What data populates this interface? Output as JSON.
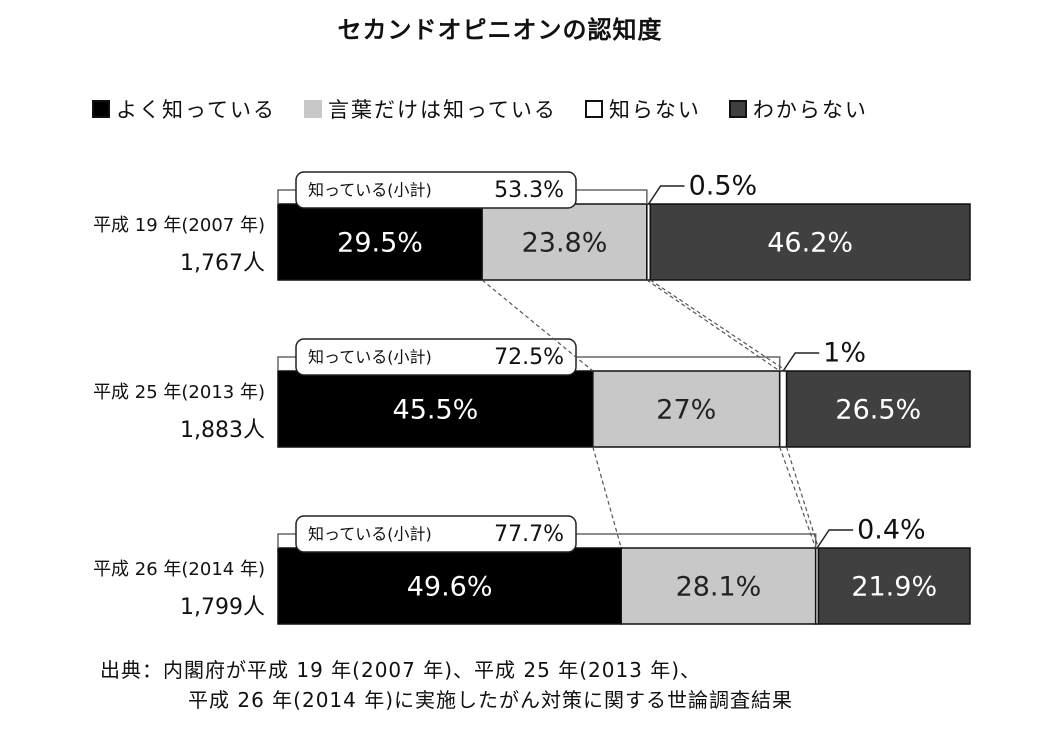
{
  "chart_data": {
    "type": "bar",
    "orientation": "horizontal-stacked-100",
    "title": "セカンドオピニオンの認知度",
    "legend": [
      {
        "label": "よく知っている",
        "color": "#000000"
      },
      {
        "label": "言葉だけは知っている",
        "color": "#c8c8c8"
      },
      {
        "label": "知らない",
        "color": "#ffffff"
      },
      {
        "label": "わからない",
        "color": "#404040"
      }
    ],
    "categories": [
      {
        "label": "平成 19 年(2007 年)",
        "n_label": "1,767人"
      },
      {
        "label": "平成 25 年(2013 年)",
        "n_label": "1,883人"
      },
      {
        "label": "平成 26 年(2014 年)",
        "n_label": "1,799人"
      }
    ],
    "series": [
      {
        "name": "よく知っている",
        "values": [
          29.5,
          45.5,
          49.6
        ],
        "labels": [
          "29.5%",
          "45.5%",
          "49.6%"
        ]
      },
      {
        "name": "言葉だけは知っている",
        "values": [
          23.8,
          27,
          28.1
        ],
        "labels": [
          "23.8%",
          "27%",
          "28.1%"
        ]
      },
      {
        "name": "知らない",
        "values": [
          0.5,
          1,
          0.4
        ],
        "labels": [
          "0.5%",
          "1%",
          "0.4%"
        ]
      },
      {
        "name": "わからない",
        "values": [
          46.2,
          26.5,
          21.9
        ],
        "labels": [
          "46.2%",
          "26.5%",
          "21.9%"
        ]
      }
    ],
    "subtotals": [
      {
        "label": "知っている(小計)",
        "value": "53.3%"
      },
      {
        "label": "知っている(小計)",
        "value": "72.5%"
      },
      {
        "label": "知っている(小計)",
        "value": "77.7%"
      }
    ],
    "xlim": [
      0,
      100
    ],
    "grid": false
  },
  "source": {
    "line1": "出典：内閣府が平成 19 年(2007 年)、平成 25 年(2013 年)、",
    "line2": "平成 26 年(2014 年)に実施したがん対策に関する世論調査結果"
  }
}
